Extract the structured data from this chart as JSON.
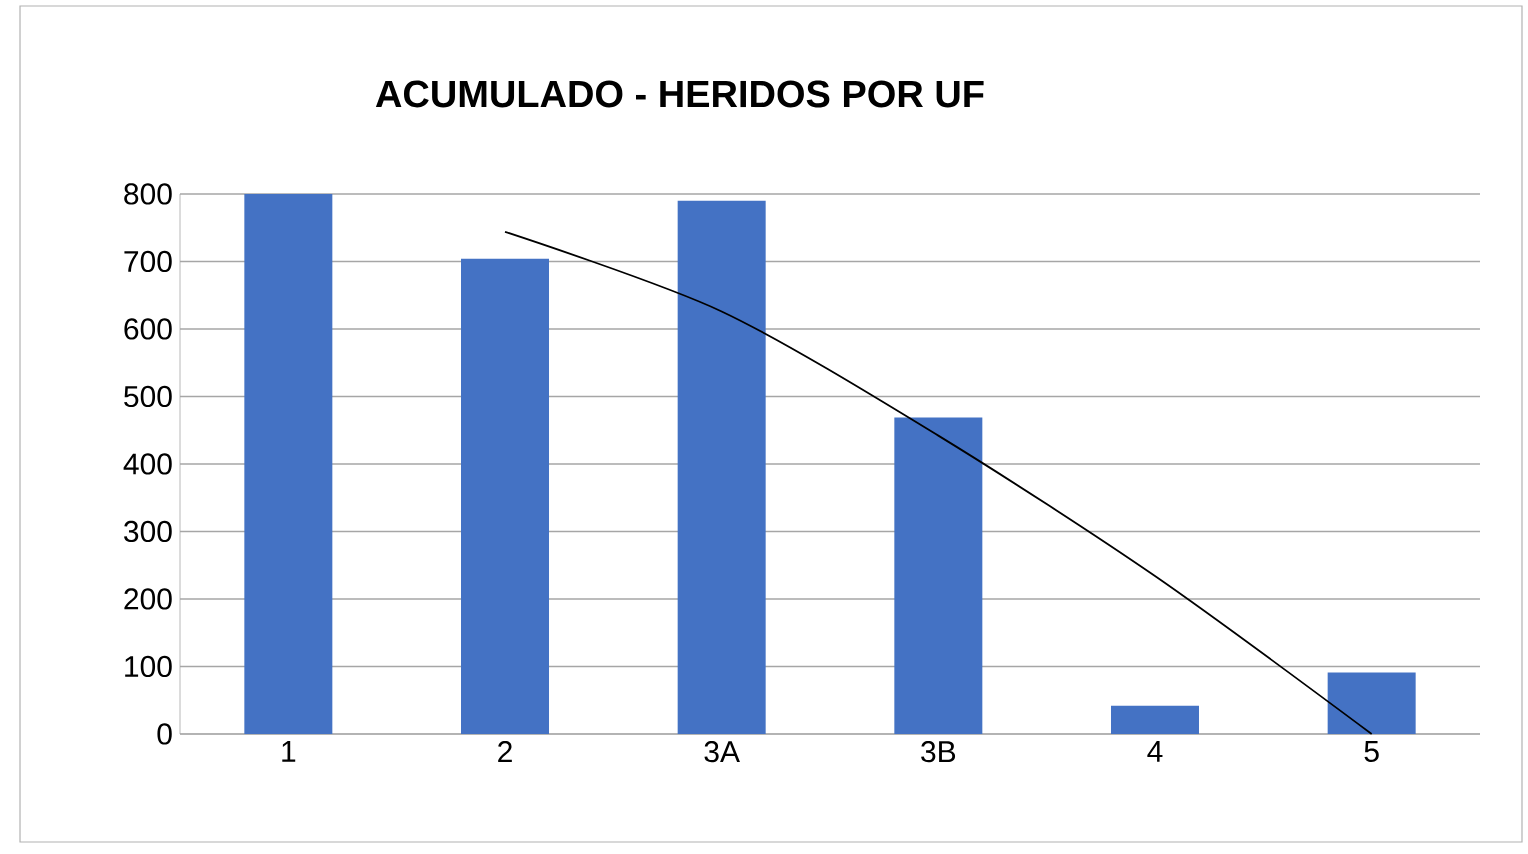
{
  "chart_data": {
    "type": "bar",
    "title": "ACUMULADO - HERIDOS POR  UF",
    "categories": [
      "1",
      "2",
      "3A",
      "3B",
      "4",
      "5"
    ],
    "series": [
      {
        "color": "#4472c4",
        "values": [
          800,
          704,
          790,
          469,
          42,
          91
        ]
      },
      {
        "type": "line",
        "color": "#000000",
        "values": [
          null,
          744,
          626,
          442,
          234,
          0
        ]
      }
    ],
    "ylim": [
      0,
      800
    ],
    "yticks": [
      0,
      100,
      200,
      300,
      400,
      500,
      600,
      700,
      800
    ],
    "grid": "y",
    "legend": false
  }
}
